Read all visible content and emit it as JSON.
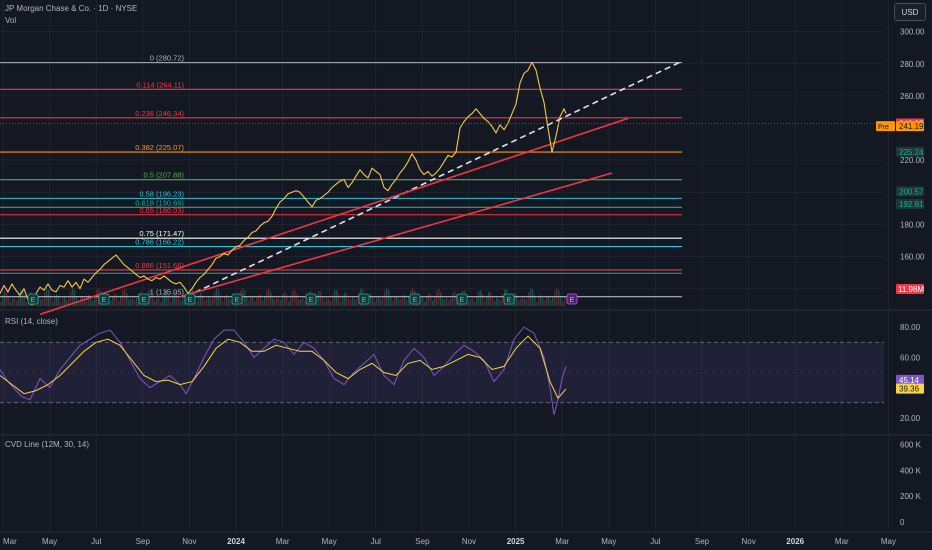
{
  "header": {
    "symbol_line": "JP Morgan Chase & Co. · 1D · NYSE",
    "vol_label": "Vol",
    "currency_button": "USD"
  },
  "chart_data": [
    {
      "type": "line",
      "price_axis": {
        "ticks": [
          300.0,
          280.0,
          260.0,
          220.0,
          200.0,
          180.0,
          160.0,
          140.0
        ],
        "ylim": [
          128,
          306
        ]
      },
      "time_axis": {
        "tick_labels": [
          "Mar",
          "May",
          "Jul",
          "Sep",
          "Nov",
          "2024",
          "Mar",
          "May",
          "Jul",
          "Sep",
          "Nov",
          "2025",
          "Mar",
          "May",
          "Jul",
          "Sep",
          "Nov",
          "2026",
          "Mar",
          "May"
        ]
      },
      "price_series": [
        [
          0,
          137
        ],
        [
          4,
          142
        ],
        [
          8,
          138
        ],
        [
          12,
          143
        ],
        [
          16,
          139
        ],
        [
          20,
          136
        ],
        [
          24,
          140
        ],
        [
          28,
          133
        ],
        [
          32,
          130
        ],
        [
          36,
          137
        ],
        [
          40,
          141
        ],
        [
          44,
          139
        ],
        [
          48,
          143
        ],
        [
          52,
          139
        ],
        [
          56,
          138
        ],
        [
          60,
          142
        ],
        [
          64,
          141
        ],
        [
          68,
          145
        ],
        [
          72,
          141
        ],
        [
          76,
          144
        ],
        [
          80,
          140
        ],
        [
          84,
          146
        ],
        [
          88,
          144
        ],
        [
          92,
          147
        ],
        [
          96,
          150
        ],
        [
          100,
          152
        ],
        [
          104,
          155
        ],
        [
          108,
          157
        ],
        [
          112,
          159
        ],
        [
          116,
          161
        ],
        [
          120,
          158
        ],
        [
          124,
          155
        ],
        [
          128,
          153
        ],
        [
          132,
          151
        ],
        [
          136,
          149
        ],
        [
          140,
          147
        ],
        [
          144,
          148
        ],
        [
          148,
          146
        ],
        [
          152,
          145
        ],
        [
          156,
          147
        ],
        [
          160,
          146
        ],
        [
          164,
          148
        ],
        [
          168,
          146
        ],
        [
          172,
          144
        ],
        [
          176,
          143
        ],
        [
          180,
          144
        ],
        [
          184,
          141
        ],
        [
          188,
          137
        ],
        [
          192,
          140
        ],
        [
          196,
          144
        ],
        [
          200,
          147
        ],
        [
          204,
          149
        ],
        [
          208,
          152
        ],
        [
          212,
          155
        ],
        [
          216,
          159
        ],
        [
          220,
          160
        ],
        [
          224,
          162
        ],
        [
          228,
          161
        ],
        [
          232,
          164
        ],
        [
          236,
          166
        ],
        [
          240,
          167
        ],
        [
          244,
          170
        ],
        [
          248,
          172
        ],
        [
          252,
          175
        ],
        [
          256,
          176
        ],
        [
          260,
          179
        ],
        [
          264,
          181
        ],
        [
          268,
          182
        ],
        [
          272,
          185
        ],
        [
          276,
          190
        ],
        [
          280,
          194
        ],
        [
          284,
          196
        ],
        [
          288,
          199
        ],
        [
          292,
          200
        ],
        [
          296,
          201
        ],
        [
          300,
          200
        ],
        [
          304,
          197
        ],
        [
          308,
          194
        ],
        [
          312,
          191
        ],
        [
          316,
          195
        ],
        [
          320,
          196
        ],
        [
          324,
          198
        ],
        [
          328,
          200
        ],
        [
          332,
          203
        ],
        [
          336,
          205
        ],
        [
          340,
          207
        ],
        [
          344,
          208
        ],
        [
          348,
          203
        ],
        [
          352,
          206
        ],
        [
          356,
          210
        ],
        [
          360,
          214
        ],
        [
          364,
          211
        ],
        [
          368,
          209
        ],
        [
          372,
          215
        ],
        [
          376,
          213
        ],
        [
          380,
          211
        ],
        [
          384,
          203
        ],
        [
          388,
          201
        ],
        [
          392,
          205
        ],
        [
          396,
          208
        ],
        [
          400,
          212
        ],
        [
          404,
          215
        ],
        [
          408,
          219
        ],
        [
          412,
          224
        ],
        [
          416,
          220
        ],
        [
          420,
          214
        ],
        [
          424,
          211
        ],
        [
          428,
          213
        ],
        [
          432,
          210
        ],
        [
          436,
          212
        ],
        [
          440,
          215
        ],
        [
          444,
          219
        ],
        [
          448,
          223
        ],
        [
          452,
          222
        ],
        [
          456,
          225
        ],
        [
          460,
          240
        ],
        [
          464,
          244
        ],
        [
          468,
          247
        ],
        [
          472,
          249
        ],
        [
          476,
          252
        ],
        [
          480,
          249
        ],
        [
          484,
          246
        ],
        [
          488,
          244
        ],
        [
          492,
          241
        ],
        [
          496,
          237
        ],
        [
          500,
          242
        ],
        [
          504,
          239
        ],
        [
          508,
          243
        ],
        [
          512,
          249
        ],
        [
          516,
          255
        ],
        [
          520,
          268
        ],
        [
          524,
          274
        ],
        [
          528,
          276
        ],
        [
          532,
          281
        ],
        [
          536,
          276
        ],
        [
          540,
          265
        ],
        [
          544,
          256
        ],
        [
          548,
          240
        ],
        [
          552,
          225
        ],
        [
          556,
          235
        ],
        [
          560,
          247
        ],
        [
          564,
          252
        ],
        [
          566,
          249
        ]
      ],
      "fibonacci": [
        {
          "ratio": "0",
          "price": 280.72,
          "label": "0 (280.72)",
          "color": "#b2b5be"
        },
        {
          "ratio": "0.114",
          "price": 264.11,
          "label": "0.114 (264.11)",
          "color": "#f23645"
        },
        {
          "ratio": "0.236",
          "price": 246.34,
          "label": "0.236 (246.34)",
          "color": "#f23645"
        },
        {
          "ratio": "0.382",
          "price": 225.07,
          "label": "0.382 (225.07)",
          "color": "#ff9800"
        },
        {
          "ratio": "0.5",
          "price": 207.88,
          "label": "0.5 (207.88)",
          "color": "#4caf50"
        },
        {
          "ratio": "0.58",
          "price": 196.23,
          "label": "0.58 (196.23)",
          "color": "#26c6da"
        },
        {
          "ratio": "0.618",
          "price": 190.69,
          "label": "0.618 (190.69)",
          "color": "#26a69a"
        },
        {
          "ratio": "0.65",
          "price": 186.03,
          "label": "0.65 (186.03)",
          "color": "#f23645"
        },
        {
          "ratio": "0.75",
          "price": 171.47,
          "label": "0.75 (171.47)",
          "color": "#ffffff"
        },
        {
          "ratio": "0.786",
          "price": 166.22,
          "label": "0.786 (166.22)",
          "color": "#26c6da"
        },
        {
          "ratio": "0.886",
          "price": 151.66,
          "label": "0.886 (151.66)",
          "color": "#f23645"
        },
        {
          "ratio": "0.9",
          "price": 149.62,
          "label": "",
          "color": "#26a69a"
        },
        {
          "ratio": "1",
          "price": 135.05,
          "label": "1 (135.05)",
          "color": "#b2b5be"
        }
      ],
      "trendlines": [
        {
          "style": "dashed",
          "color": "#e0e3eb",
          "from": [
            186,
            135
          ],
          "to": [
            680,
            281
          ]
        },
        {
          "style": "solid",
          "color": "#f23645",
          "from": [
            40,
            124
          ],
          "to": [
            628,
            246
          ]
        },
        {
          "style": "solid",
          "color": "#f23645",
          "from": [
            180,
            135
          ],
          "to": [
            612,
            212
          ]
        }
      ],
      "price_labels": [
        {
          "value": "242.85",
          "price": 242.85,
          "bg": "#f23645",
          "fg": "#ffffff",
          "prefix": ""
        },
        {
          "value": "241.19",
          "price": 241.19,
          "bg": "#ff9800",
          "fg": "#141823",
          "prefix": "Pre"
        },
        {
          "value": "225.24",
          "price": 225.24,
          "bg": "#1b3a34",
          "fg": "#26a69a",
          "prefix": ""
        },
        {
          "value": "200.57",
          "price": 200.57,
          "bg": "#1b3a34",
          "fg": "#26a69a",
          "prefix": ""
        },
        {
          "value": "192.81",
          "price": 192.81,
          "bg": "#1b3a34",
          "fg": "#26a69a",
          "prefix": ""
        }
      ],
      "volume_label": "11.98M",
      "earnings_markers": [
        "E",
        "E",
        "E",
        "E",
        "E",
        "E",
        "E",
        "E",
        "E",
        "E",
        "E"
      ]
    },
    {
      "type": "line",
      "title": "RSI (14, close)",
      "ylim": [
        10,
        90
      ],
      "ticks": [
        80.0,
        60.0,
        20.0
      ],
      "bands": {
        "upper": 70,
        "lower": 30
      },
      "rsi_series": [
        [
          0,
          52
        ],
        [
          8,
          44
        ],
        [
          16,
          38
        ],
        [
          22,
          34
        ],
        [
          30,
          32
        ],
        [
          40,
          46
        ],
        [
          50,
          40
        ],
        [
          60,
          52
        ],
        [
          70,
          60
        ],
        [
          80,
          68
        ],
        [
          90,
          72
        ],
        [
          100,
          76
        ],
        [
          110,
          78
        ],
        [
          120,
          70
        ],
        [
          130,
          58
        ],
        [
          140,
          46
        ],
        [
          150,
          40
        ],
        [
          160,
          44
        ],
        [
          170,
          48
        ],
        [
          180,
          42
        ],
        [
          186,
          36
        ],
        [
          194,
          46
        ],
        [
          204,
          60
        ],
        [
          214,
          72
        ],
        [
          224,
          78
        ],
        [
          234,
          78
        ],
        [
          244,
          70
        ],
        [
          254,
          60
        ],
        [
          264,
          66
        ],
        [
          274,
          72
        ],
        [
          284,
          70
        ],
        [
          294,
          62
        ],
        [
          304,
          70
        ],
        [
          314,
          66
        ],
        [
          324,
          58
        ],
        [
          334,
          46
        ],
        [
          344,
          42
        ],
        [
          354,
          50
        ],
        [
          364,
          56
        ],
        [
          374,
          62
        ],
        [
          384,
          48
        ],
        [
          394,
          42
        ],
        [
          404,
          58
        ],
        [
          414,
          66
        ],
        [
          424,
          60
        ],
        [
          434,
          48
        ],
        [
          444,
          54
        ],
        [
          454,
          62
        ],
        [
          464,
          68
        ],
        [
          474,
          64
        ],
        [
          484,
          58
        ],
        [
          494,
          44
        ],
        [
          504,
          52
        ],
        [
          514,
          72
        ],
        [
          524,
          80
        ],
        [
          534,
          76
        ],
        [
          544,
          60
        ],
        [
          550,
          40
        ],
        [
          554,
          22
        ],
        [
          558,
          32
        ],
        [
          562,
          46
        ],
        [
          566,
          54
        ]
      ],
      "rsi_ma_series": [
        [
          0,
          48
        ],
        [
          12,
          42
        ],
        [
          24,
          36
        ],
        [
          36,
          38
        ],
        [
          48,
          42
        ],
        [
          60,
          48
        ],
        [
          72,
          56
        ],
        [
          84,
          64
        ],
        [
          96,
          70
        ],
        [
          108,
          72
        ],
        [
          120,
          68
        ],
        [
          132,
          58
        ],
        [
          144,
          48
        ],
        [
          156,
          44
        ],
        [
          168,
          45
        ],
        [
          180,
          42
        ],
        [
          192,
          44
        ],
        [
          204,
          54
        ],
        [
          216,
          66
        ],
        [
          228,
          72
        ],
        [
          240,
          70
        ],
        [
          252,
          64
        ],
        [
          264,
          64
        ],
        [
          276,
          68
        ],
        [
          288,
          66
        ],
        [
          300,
          64
        ],
        [
          312,
          64
        ],
        [
          324,
          58
        ],
        [
          336,
          50
        ],
        [
          348,
          46
        ],
        [
          360,
          52
        ],
        [
          372,
          56
        ],
        [
          384,
          50
        ],
        [
          396,
          48
        ],
        [
          408,
          56
        ],
        [
          420,
          58
        ],
        [
          432,
          52
        ],
        [
          444,
          54
        ],
        [
          456,
          58
        ],
        [
          468,
          62
        ],
        [
          480,
          60
        ],
        [
          492,
          52
        ],
        [
          504,
          54
        ],
        [
          516,
          66
        ],
        [
          528,
          74
        ],
        [
          540,
          66
        ],
        [
          550,
          44
        ],
        [
          558,
          33
        ],
        [
          566,
          39
        ]
      ],
      "labels": [
        {
          "value": "45.14",
          "bg": "#7e57c2",
          "fg": "#ffffff",
          "y": 45.14
        },
        {
          "value": "39.36",
          "bg": "#f7d548",
          "fg": "#141823",
          "y": 39.36
        }
      ]
    },
    {
      "type": "line",
      "title": "CVD Line (12M, 30, 14)",
      "ylim": [
        0,
        600000
      ],
      "ticks": [
        "600 K",
        "400 K",
        "200 K",
        "0"
      ],
      "tick_values": [
        600000,
        400000,
        200000,
        0
      ]
    }
  ]
}
